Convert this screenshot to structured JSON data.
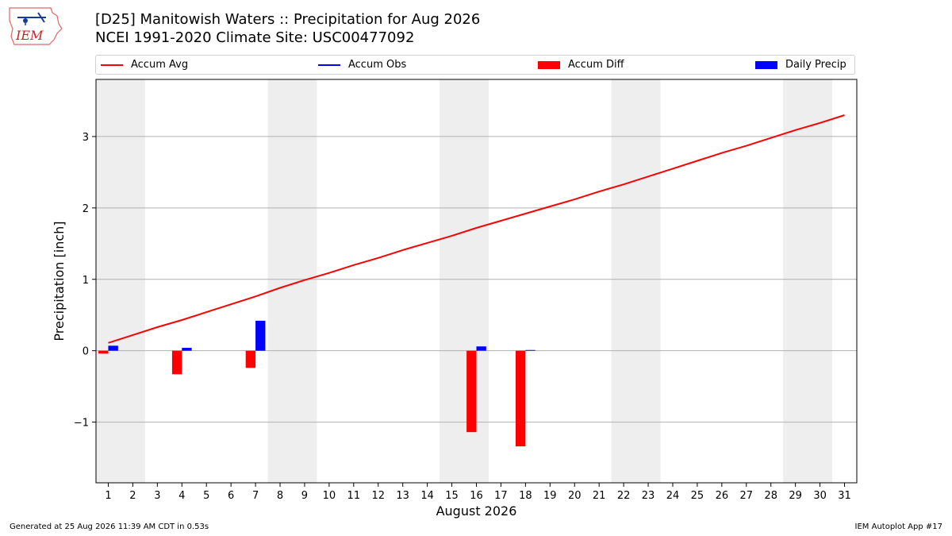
{
  "header": {
    "logo_text": "IEM",
    "title_line1": "[D25] Manitowish Waters :: Precipitation for Aug 2026",
    "title_line2": "NCEI 1991-2020 Climate Site: USC00477092"
  },
  "footer": {
    "generated": "Generated at 25 Aug 2026 11:39 AM CDT in 0.53s",
    "app": "IEM Autoplot App #17"
  },
  "colors": {
    "accum_avg": "#ff0000",
    "accum_obs": "#0000ff",
    "accum_diff": "#ff0000",
    "daily_precip": "#0000ff",
    "weekend_shade": "#eeeeee",
    "grid": "#b0b0b0"
  },
  "chart_data": {
    "type": "bar",
    "xlabel": "August 2026",
    "ylabel": "Precipitation [inch]",
    "ylim": [
      -1.85,
      3.8
    ],
    "xlim": [
      0.5,
      31.5
    ],
    "yticks": [
      -1,
      0,
      1,
      2,
      3
    ],
    "xticks": [
      1,
      2,
      3,
      4,
      5,
      6,
      7,
      8,
      9,
      10,
      11,
      12,
      13,
      14,
      15,
      16,
      17,
      18,
      19,
      20,
      21,
      22,
      23,
      24,
      25,
      26,
      27,
      28,
      29,
      30,
      31
    ],
    "grid": true,
    "legend_placement": "top",
    "weekend_shading": [
      [
        1,
        2
      ],
      [
        8,
        9
      ],
      [
        15,
        16
      ],
      [
        22,
        23
      ],
      [
        29,
        30
      ]
    ],
    "legend": [
      {
        "name": "Accum Avg",
        "kind": "line"
      },
      {
        "name": "Accum Obs",
        "kind": "line"
      },
      {
        "name": "Accum Diff",
        "kind": "bar"
      },
      {
        "name": "Daily Precip",
        "kind": "bar"
      }
    ],
    "accum_avg": {
      "x": [
        1,
        2,
        3,
        4,
        5,
        6,
        7,
        8,
        9,
        10,
        11,
        12,
        13,
        14,
        15,
        16,
        17,
        18,
        19,
        20,
        21,
        22,
        23,
        24,
        25,
        26,
        27,
        28,
        29,
        30,
        31
      ],
      "y": [
        0.11,
        0.22,
        0.33,
        0.43,
        0.54,
        0.65,
        0.76,
        0.88,
        0.99,
        1.09,
        1.2,
        1.3,
        1.41,
        1.51,
        1.61,
        1.72,
        1.82,
        1.92,
        2.02,
        2.12,
        2.23,
        2.33,
        2.44,
        2.55,
        2.66,
        2.77,
        2.87,
        2.98,
        3.09,
        3.19,
        3.3
      ]
    },
    "accum_diff": {
      "x": [
        1,
        4,
        7,
        16,
        18
      ],
      "y": [
        -0.04,
        -0.33,
        -0.24,
        -1.14,
        -1.34
      ]
    },
    "daily_precip": {
      "x": [
        1,
        4,
        7,
        16,
        18
      ],
      "y": [
        0.07,
        0.04,
        0.42,
        0.06,
        0.01
      ]
    }
  }
}
